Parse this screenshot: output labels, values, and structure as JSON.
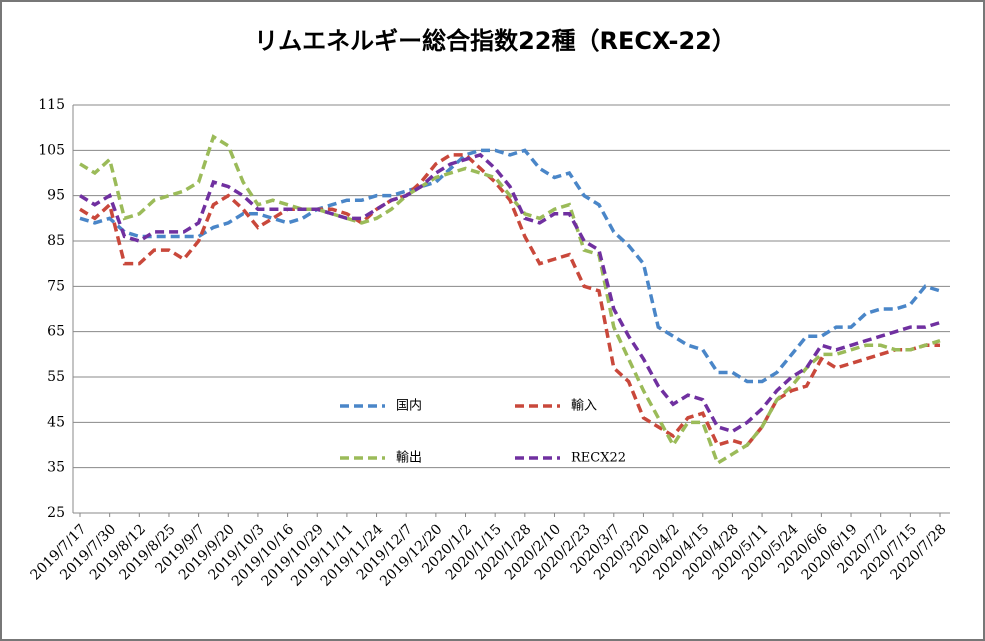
{
  "chart_data": {
    "type": "line",
    "title": "リムエネルギー総合指数22種（RECX-22）",
    "categories": [
      "2019/7/17",
      null,
      "2019/7/30",
      null,
      "2019/8/12",
      null,
      "2019/8/25",
      null,
      "2019/9/7",
      null,
      "2019/9/20",
      null,
      "2019/10/3",
      null,
      "2019/10/16",
      null,
      "2019/10/29",
      null,
      "2019/11/11",
      null,
      "2019/11/24",
      null,
      "2019/12/7",
      null,
      "2019/12/20",
      null,
      "2020/1/2",
      null,
      "2020/1/15",
      null,
      "2020/1/28",
      null,
      "2020/2/10",
      null,
      "2020/2/23",
      null,
      "2020/3/7",
      null,
      "2020/3/20",
      null,
      "2020/4/2",
      null,
      "2020/4/15",
      null,
      "2020/4/28",
      null,
      "2020/5/11",
      null,
      "2020/5/24",
      null,
      "2020/6/6",
      null,
      "2020/6/19",
      null,
      "2020/7/2",
      null,
      "2020/7/15",
      null,
      "2020/7/28"
    ],
    "series": [
      {
        "name": "国内",
        "color": "#4a86c8",
        "values": [
          90,
          89,
          90,
          87,
          86,
          86,
          86,
          86,
          86,
          88,
          89,
          91,
          91,
          90,
          89,
          90,
          92,
          93,
          94,
          94,
          95,
          95,
          96,
          97,
          98,
          101,
          104,
          105,
          105,
          104,
          105,
          101,
          99,
          100,
          95,
          93,
          87,
          84,
          80,
          66,
          64,
          62,
          61,
          56,
          56,
          54,
          54,
          56,
          60,
          64,
          64,
          66,
          66,
          69,
          70,
          70,
          71,
          75,
          74
        ]
      },
      {
        "name": "輸入",
        "color": "#c9483b",
        "values": [
          92,
          90,
          93,
          80,
          80,
          83,
          83,
          81,
          85,
          93,
          95,
          92,
          88,
          90,
          92,
          92,
          92,
          92,
          91,
          89,
          92,
          94,
          95,
          98,
          102,
          104,
          104,
          101,
          98,
          94,
          86,
          80,
          81,
          82,
          75,
          74,
          57,
          54,
          46,
          44,
          42,
          46,
          47,
          40,
          41,
          40,
          44,
          50,
          52,
          53,
          59,
          57,
          58,
          59,
          60,
          61,
          61,
          62,
          62
        ]
      },
      {
        "name": "輸出",
        "color": "#9bbb59",
        "values": [
          102,
          100,
          103,
          90,
          91,
          94,
          95,
          96,
          98,
          108,
          106,
          98,
          93,
          94,
          93,
          92,
          92,
          91,
          90,
          89,
          90,
          92,
          95,
          97,
          99,
          100,
          101,
          100,
          99,
          95,
          91,
          90,
          92,
          93,
          83,
          82,
          66,
          59,
          52,
          46,
          40,
          45,
          45,
          36,
          38,
          40,
          44,
          50,
          53,
          57,
          60,
          60,
          61,
          62,
          62,
          61,
          61,
          62,
          63
        ]
      },
      {
        "name": "RECX22",
        "color": "#7030a0",
        "values": [
          95,
          93,
          95,
          86,
          85,
          87,
          87,
          87,
          89,
          98,
          97,
          95,
          92,
          92,
          92,
          92,
          92,
          91,
          90,
          90,
          92,
          94,
          95,
          97,
          100,
          102,
          103,
          104,
          101,
          97,
          90,
          89,
          91,
          91,
          85,
          83,
          70,
          64,
          59,
          53,
          49,
          51,
          50,
          44,
          43,
          45,
          48,
          52,
          55,
          57,
          62,
          61,
          62,
          63,
          64,
          65,
          66,
          66,
          67
        ]
      }
    ],
    "ylim": [
      25,
      115
    ],
    "yticks": [
      25,
      35,
      45,
      55,
      65,
      75,
      85,
      95,
      105,
      115
    ],
    "grid": true
  }
}
